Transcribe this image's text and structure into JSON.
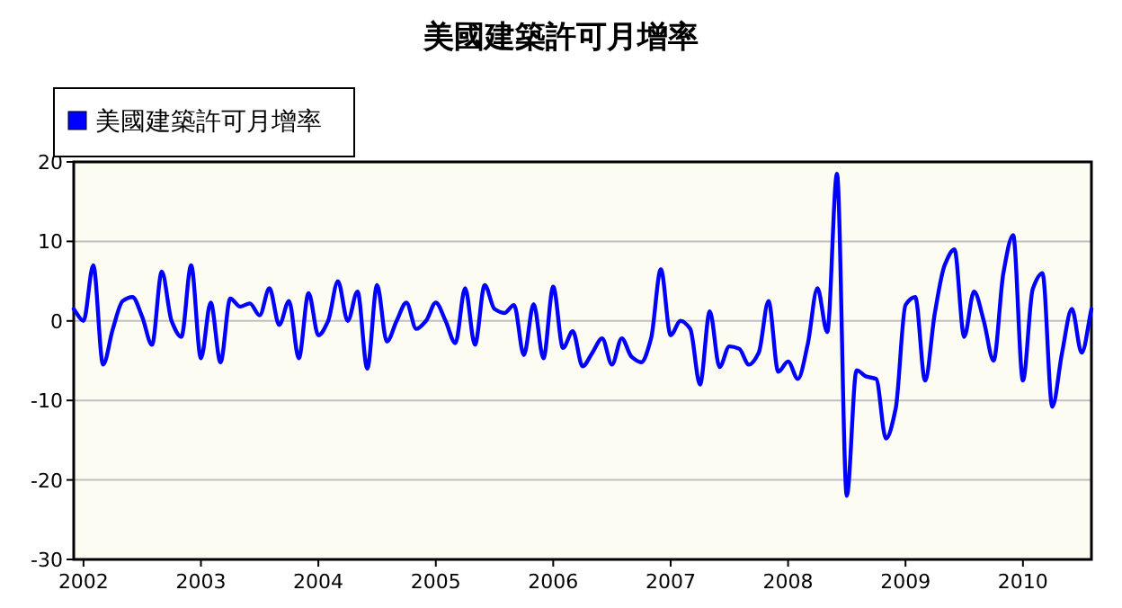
{
  "chart_data": {
    "type": "line",
    "title": "美國建築許可月增率",
    "legend": "top left",
    "grid": "y",
    "marker": "none",
    "line_style": "solid",
    "x": [
      "2001-12",
      "2002-01",
      "2002-02",
      "2002-03",
      "2002-04",
      "2002-05",
      "2002-06",
      "2002-07",
      "2002-08",
      "2002-09",
      "2002-10",
      "2002-11",
      "2002-12",
      "2003-01",
      "2003-02",
      "2003-03",
      "2003-04",
      "2003-05",
      "2003-06",
      "2003-07",
      "2003-08",
      "2003-09",
      "2003-10",
      "2003-11",
      "2003-12",
      "2004-01",
      "2004-02",
      "2004-03",
      "2004-04",
      "2004-05",
      "2004-06",
      "2004-07",
      "2004-08",
      "2004-09",
      "2004-10",
      "2004-11",
      "2004-12",
      "2005-01",
      "2005-02",
      "2005-03",
      "2005-04",
      "2005-05",
      "2005-06",
      "2005-07",
      "2005-08",
      "2005-09",
      "2005-10",
      "2005-11",
      "2005-12",
      "2006-01",
      "2006-02",
      "2006-03",
      "2006-04",
      "2006-05",
      "2006-06",
      "2006-07",
      "2006-08",
      "2006-09",
      "2006-10",
      "2006-11",
      "2006-12",
      "2007-01",
      "2007-02",
      "2007-03",
      "2007-04",
      "2007-05",
      "2007-06",
      "2007-07",
      "2007-08",
      "2007-09",
      "2007-10",
      "2007-11",
      "2007-12",
      "2008-01",
      "2008-02",
      "2008-03",
      "2008-04",
      "2008-05",
      "2008-06",
      "2008-07",
      "2008-08",
      "2008-09",
      "2008-10",
      "2008-11",
      "2008-12",
      "2009-01",
      "2009-02",
      "2009-03",
      "2009-04",
      "2009-05",
      "2009-06",
      "2009-07",
      "2009-08",
      "2009-09",
      "2009-10",
      "2009-11",
      "2009-12",
      "2010-01",
      "2010-02",
      "2010-03",
      "2010-04",
      "2010-05",
      "2010-06",
      "2010-07",
      "2010-08"
    ],
    "series": [
      {
        "name": "美國建築許可月增率",
        "color": "#0000ff",
        "values": [
          1.5,
          0,
          7,
          -5.5,
          -1,
          2.5,
          3,
          0.5,
          -3,
          6.2,
          0,
          -2,
          7,
          -4.7,
          2.3,
          -5.2,
          2.8,
          1.8,
          2.2,
          0.7,
          4.1,
          -0.5,
          2.5,
          -4.7,
          3.5,
          -1.8,
          0,
          5,
          0,
          3.7,
          -6,
          4.5,
          -2.6,
          0,
          2.3,
          -1,
          0,
          2.3,
          0,
          -2.8,
          4.1,
          -3,
          4.5,
          1.5,
          1,
          2,
          -4.3,
          2.1,
          -4.7,
          4.3,
          -3.4,
          -1.3,
          -5.7,
          -4,
          -2.2,
          -5.5,
          -2.2,
          -4.5,
          -5.2,
          -2.2,
          6.5,
          -1.8,
          0,
          -1,
          -8,
          1.2,
          -5.8,
          -3.2,
          -3.5,
          -5.5,
          -4,
          2.5,
          -6.4,
          -5.1,
          -7.3,
          -3,
          4.1,
          -1.4,
          18.5,
          -22,
          -6.2,
          -7,
          -7.3,
          -14.8,
          -11,
          2,
          3,
          -7.5,
          1,
          7,
          9,
          -2,
          3.7,
          0,
          -5,
          6,
          10.8,
          -7.5,
          4,
          6,
          -10.8,
          -4,
          1.5,
          -4,
          1.5
        ]
      }
    ],
    "xlim": [
      "2001-12",
      "2010-08"
    ],
    "xticks": [
      {
        "value": "2002-01",
        "label": "2002"
      },
      {
        "value": "2003-01",
        "label": "2003"
      },
      {
        "value": "2004-01",
        "label": "2004"
      },
      {
        "value": "2005-01",
        "label": "2005"
      },
      {
        "value": "2006-01",
        "label": "2006"
      },
      {
        "value": "2007-01",
        "label": "2007"
      },
      {
        "value": "2008-01",
        "label": "2008"
      },
      {
        "value": "2009-01",
        "label": "2009"
      },
      {
        "value": "2010-01",
        "label": "2010"
      }
    ],
    "ylim": [
      -30,
      20
    ],
    "yticks": [
      -30,
      -20,
      -10,
      0,
      10,
      20
    ]
  }
}
